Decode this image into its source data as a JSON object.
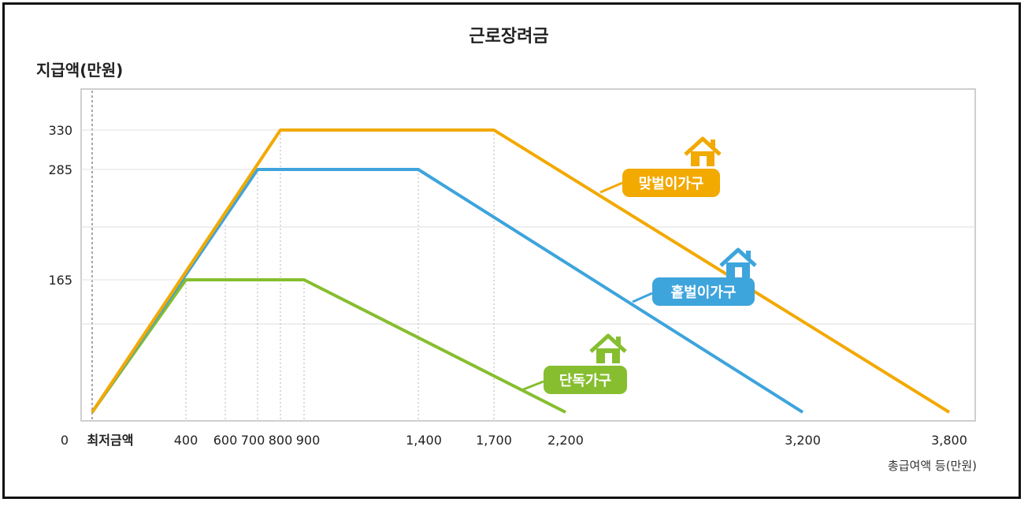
{
  "chart_data": {
    "type": "line",
    "title": "근로장려금",
    "ylabel": "지급액(만원)",
    "xlabel": "총급여액 등(만원)",
    "x_ticks": [
      "0",
      "최저금액",
      "400",
      "600",
      "700",
      "800",
      "900",
      "1,400",
      "1,700",
      "2,200",
      "3,200",
      "3,800"
    ],
    "y_ticks": [
      "330",
      "285",
      "165"
    ],
    "xlim": [
      0,
      3800
    ],
    "ylim": [
      0,
      330
    ],
    "grid": true,
    "series": [
      {
        "name": "맞벌이가구",
        "color": "#F2A900",
        "x": [
          0,
          800,
          1700,
          3800
        ],
        "y": [
          0,
          330,
          330,
          0
        ]
      },
      {
        "name": "홑벌이가구",
        "color": "#3EA4DC",
        "x": [
          0,
          700,
          1400,
          3200
        ],
        "y": [
          0,
          285,
          285,
          0
        ]
      },
      {
        "name": "단독가구",
        "color": "#86BE2F",
        "x": [
          0,
          400,
          900,
          2200
        ],
        "y": [
          0,
          165,
          165,
          0
        ]
      }
    ]
  }
}
